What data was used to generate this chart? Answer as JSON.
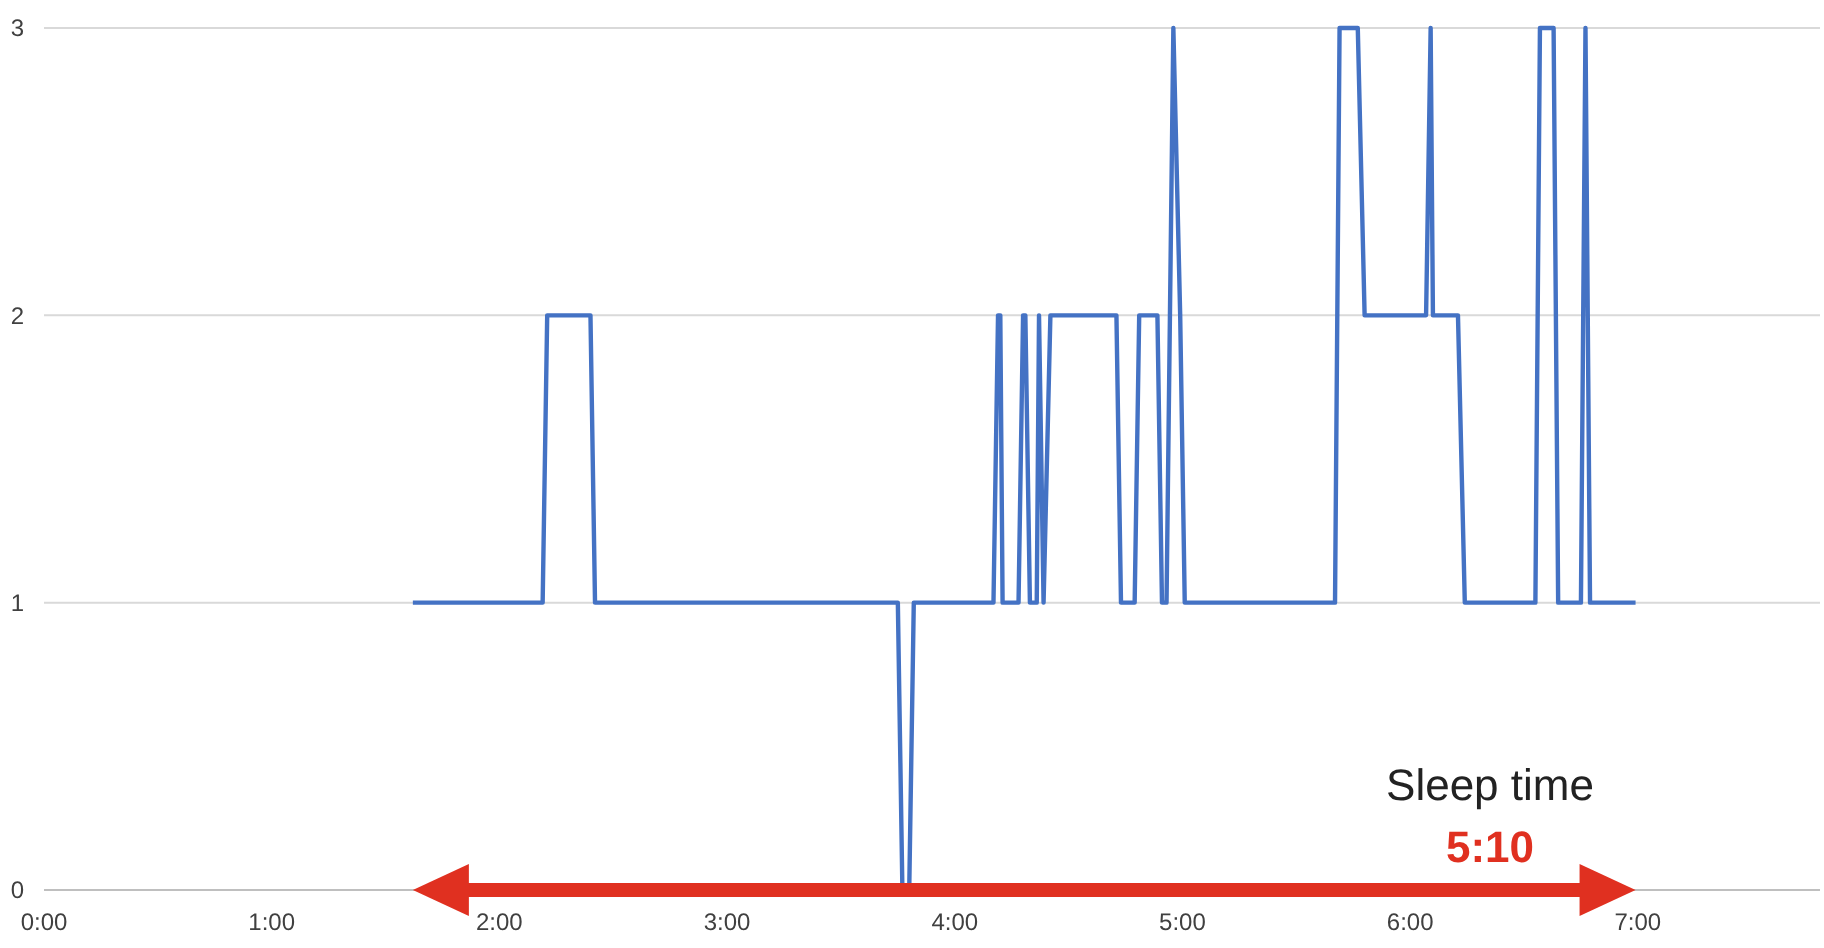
{
  "chart_data": {
    "type": "line",
    "x": [
      1.62,
      2.19,
      2.21,
      2.4,
      2.42,
      3.75,
      3.77,
      3.8,
      3.82,
      4.17,
      4.19,
      4.2,
      4.21,
      4.28,
      4.3,
      4.31,
      4.33,
      4.36,
      4.37,
      4.39,
      4.42,
      4.71,
      4.73,
      4.79,
      4.81,
      4.89,
      4.91,
      4.93,
      4.96,
      4.99,
      5.01,
      5.67,
      5.69,
      5.77,
      5.8,
      6.07,
      6.09,
      6.1,
      6.21,
      6.24,
      6.55,
      6.57,
      6.63,
      6.65,
      6.75,
      6.77,
      6.79,
      6.99
    ],
    "series": [
      {
        "color": "#4472c4",
        "values": [
          1,
          1,
          2,
          2,
          1,
          1,
          0,
          0,
          1,
          1,
          2,
          2,
          1,
          1,
          2,
          2,
          1,
          1,
          2,
          1,
          2,
          2,
          1,
          1,
          2,
          2,
          1,
          1,
          3,
          2,
          1,
          1,
          3,
          3,
          2,
          2,
          3,
          2,
          2,
          1,
          1,
          3,
          3,
          1,
          1,
          3,
          1,
          1
        ]
      }
    ],
    "xlim": [
      0,
      7.8
    ],
    "xticks": [
      {
        "value": 0,
        "label": "0:00"
      },
      {
        "value": 1,
        "label": "1:00"
      },
      {
        "value": 2,
        "label": "2:00"
      },
      {
        "value": 3,
        "label": "3:00"
      },
      {
        "value": 4,
        "label": "4:00"
      },
      {
        "value": 5,
        "label": "5:00"
      },
      {
        "value": 6,
        "label": "6:00"
      },
      {
        "value": 7,
        "label": "7:00"
      }
    ],
    "ylim": [
      0,
      3
    ],
    "yticks": [
      0,
      1,
      2,
      3
    ],
    "grid": "y",
    "marker": "none",
    "line_style": "solid",
    "annotations": [
      "Sleep time",
      "5:10"
    ]
  }
}
